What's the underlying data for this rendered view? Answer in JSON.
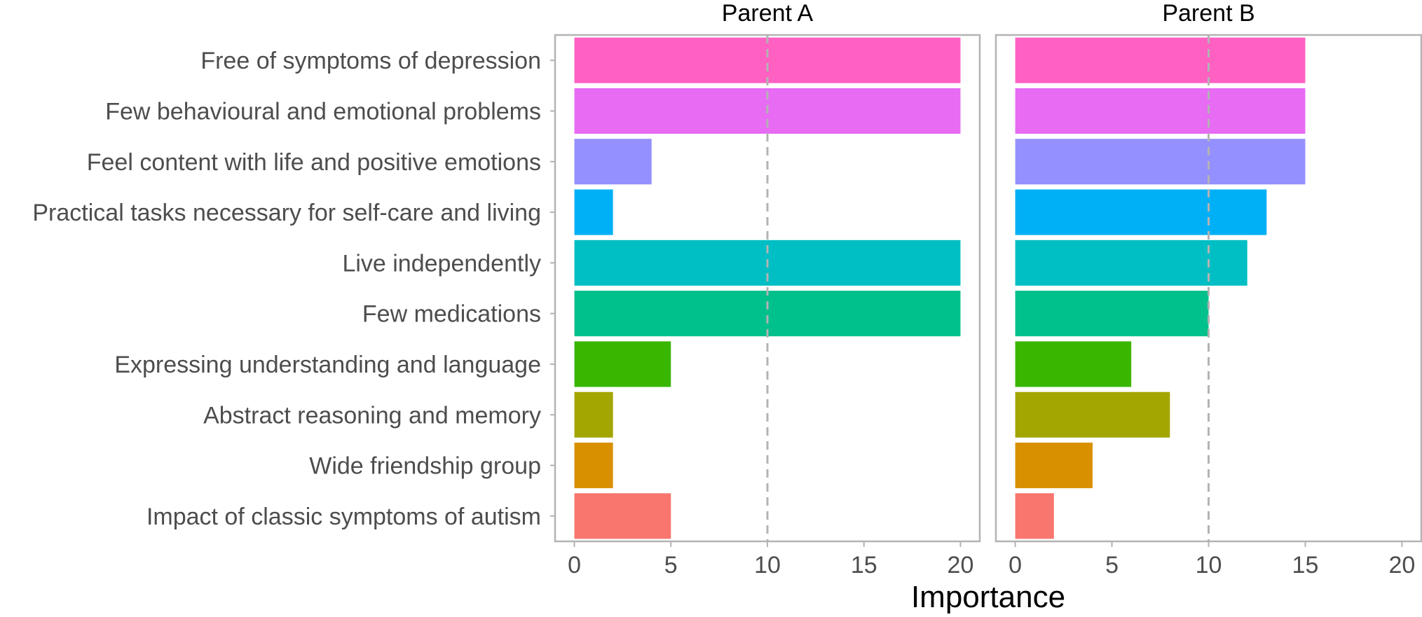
{
  "chart_data": {
    "type": "bar",
    "orientation": "horizontal",
    "categories": [
      "Free of symptoms of depression",
      "Few behavioural and emotional problems",
      "Feel content with life and positive emotions",
      "Practical tasks necessary for self-care and living",
      "Live independently",
      "Few medications",
      "Expressing understanding and language",
      "Abstract reasoning and memory",
      "Wide friendship group",
      "Impact of classic symptoms of autism"
    ],
    "category_colors": [
      "#FF61C3",
      "#E76BF3",
      "#9590FF",
      "#00B0F6",
      "#00BFC4",
      "#00C08B",
      "#39B600",
      "#A3A500",
      "#D89000",
      "#F8766D"
    ],
    "series": [
      {
        "name": "Parent A",
        "values": [
          20,
          20,
          4,
          2,
          20,
          20,
          5,
          2,
          2,
          5
        ]
      },
      {
        "name": "Parent B",
        "values": [
          15,
          15,
          15,
          13,
          12,
          10,
          6,
          8,
          4,
          2
        ]
      }
    ],
    "xlabel": "Importance",
    "ylabel": "",
    "xlim": [
      -1,
      21
    ],
    "xticks": [
      0,
      5,
      10,
      15,
      20
    ],
    "reference_line": 10,
    "reference_line_color": "#b3b3b3",
    "panel_border_color": "#b3b3b3",
    "grid": false
  }
}
